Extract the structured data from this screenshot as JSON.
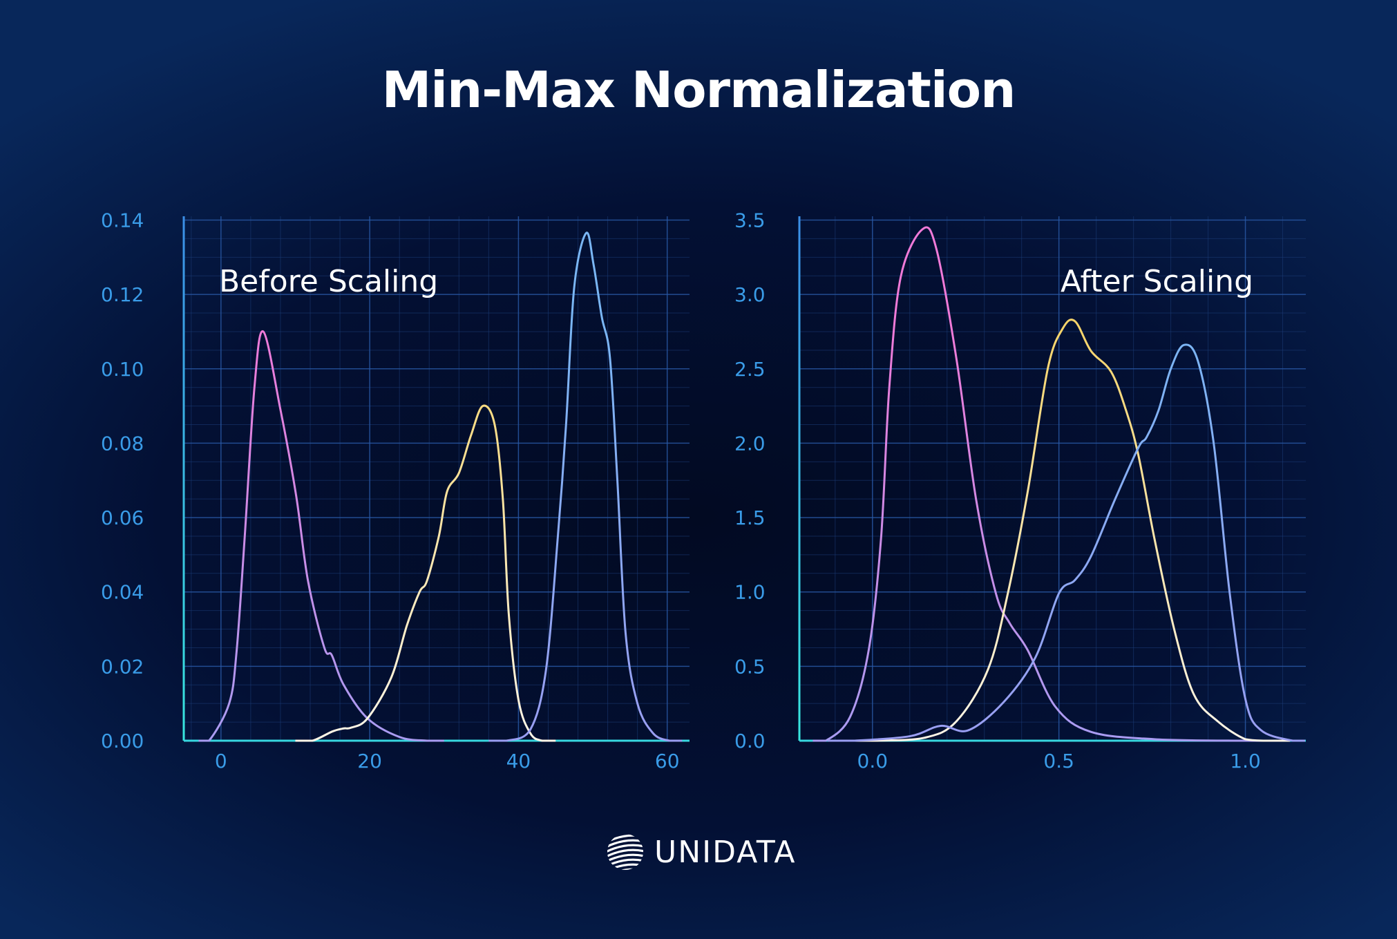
{
  "title": "Min-Max Normalization",
  "logo": {
    "text": "UNIDATA",
    "icon": "striped-globe-icon"
  },
  "colors": {
    "pink": "#f07ad8",
    "lavender": "#a99cf2",
    "yellow": "#f7d469",
    "white": "#fff6e8",
    "blue": "#7ab6f4",
    "periwinkle": "#9a9ef2",
    "axis_top": "#3b8ee6",
    "axis_bottom": "#38e6de",
    "tick": "#3a9ce8"
  },
  "chart_data": [
    {
      "type": "line",
      "label": "Before Scaling",
      "xlim": [
        -5,
        63
      ],
      "ylim": [
        0,
        0.14
      ],
      "xticks": [
        "0",
        "20",
        "40",
        "60"
      ],
      "xtick_values": [
        0,
        20,
        40,
        60
      ],
      "yticks": [
        "0.00",
        "0.02",
        "0.04",
        "0.06",
        "0.08",
        "0.10",
        "0.12",
        "0.14"
      ],
      "ytick_values": [
        0,
        0.02,
        0.04,
        0.06,
        0.08,
        0.1,
        0.12,
        0.14
      ],
      "grid": true,
      "series": [
        {
          "color_top": "#f07ad8",
          "color_bottom": "#a99cf2",
          "x": [
            -3,
            -1.6,
            1.1,
            2.1,
            3.2,
            4.5,
            5.7,
            8,
            10.1,
            11.7,
            13.9,
            14.9,
            16.5,
            19.7,
            24,
            27.7,
            30
          ],
          "y": [
            0,
            0,
            0.01,
            0.024,
            0.055,
            0.095,
            0.11,
            0.089,
            0.066,
            0.043,
            0.025,
            0.023,
            0.015,
            0.006,
            0.001,
            0,
            0
          ]
        },
        {
          "color_top": "#f7d469",
          "color_bottom": "#fff6e8",
          "x": [
            10,
            12.3,
            15,
            16.5,
            17.5,
            19.7,
            22.9,
            25,
            26.7,
            27.7,
            29.3,
            30.4,
            32,
            33.6,
            35.2,
            36.8,
            37.9,
            38.7,
            40,
            41.6,
            43.2,
            45
          ],
          "y": [
            0,
            0,
            0.0025,
            0.0033,
            0.0035,
            0.006,
            0.017,
            0.031,
            0.04,
            0.043,
            0.055,
            0.067,
            0.072,
            0.082,
            0.09,
            0.085,
            0.065,
            0.034,
            0.011,
            0.002,
            0,
            0
          ]
        },
        {
          "color_top": "#7ab6f4",
          "color_bottom": "#9a9ef2",
          "x": [
            36,
            38.4,
            41.6,
            43.7,
            45.3,
            46.4,
            47.5,
            49.1,
            50.1,
            51.2,
            52.3,
            53.3,
            54.4,
            56,
            58.1,
            60.3,
            62
          ],
          "y": [
            0,
            0,
            0.003,
            0.019,
            0.055,
            0.085,
            0.122,
            0.1365,
            0.128,
            0.114,
            0.103,
            0.07,
            0.029,
            0.01,
            0.002,
            0,
            0
          ]
        }
      ]
    },
    {
      "type": "line",
      "label": "After Scaling",
      "xlim": [
        -0.196,
        1.162
      ],
      "ylim": [
        0,
        3.5
      ],
      "xticks": [
        "0.0",
        "0.5",
        "1.0"
      ],
      "xtick_values": [
        0,
        0.5,
        1
      ],
      "yticks": [
        "0.0",
        "0.5",
        "1.0",
        "1.5",
        "2.0",
        "2.5",
        "3.0",
        "3.5"
      ],
      "ytick_values": [
        0,
        0.5,
        1,
        1.5,
        2,
        2.5,
        3,
        3.5
      ],
      "grid": true,
      "series": [
        {
          "color_top": "#f07ad8",
          "color_bottom": "#a99cf2",
          "x": [
            -0.16,
            -0.125,
            -0.06,
            -0.01,
            0.023,
            0.045,
            0.076,
            0.135,
            0.172,
            0.225,
            0.278,
            0.331,
            0.368,
            0.416,
            0.49,
            0.585,
            0.756,
            0.97,
            1.1
          ],
          "y": [
            0,
            0,
            0.16,
            0.61,
            1.36,
            2.37,
            3.12,
            3.44,
            3.3,
            2.57,
            1.62,
            0.99,
            0.79,
            0.61,
            0.23,
            0.06,
            0.01,
            0,
            0
          ]
        },
        {
          "color_top": "#f7d469",
          "color_bottom": "#fff6e8",
          "x": [
            -0.1,
            0.013,
            0.14,
            0.225,
            0.31,
            0.363,
            0.416,
            0.47,
            0.51,
            0.543,
            0.586,
            0.64,
            0.68,
            0.713,
            0.756,
            0.81,
            0.862,
            0.926,
            1.0,
            1.053,
            1.12
          ],
          "y": [
            0,
            0,
            0.02,
            0.13,
            0.48,
            0.99,
            1.67,
            2.5,
            2.77,
            2.82,
            2.62,
            2.48,
            2.22,
            1.92,
            1.36,
            0.74,
            0.31,
            0.13,
            0.01,
            0,
            0
          ]
        },
        {
          "color_top": "#7ab6f4",
          "color_bottom": "#9a9ef2",
          "x": [
            -0.12,
            -0.05,
            0.1,
            0.183,
            0.257,
            0.352,
            0.437,
            0.5,
            0.543,
            0.586,
            0.65,
            0.713,
            0.735,
            0.767,
            0.8,
            0.835,
            0.873,
            0.915,
            0.958,
            1.0,
            1.042,
            1.127,
            1.16
          ],
          "y": [
            0,
            0,
            0.03,
            0.1,
            0.07,
            0.26,
            0.56,
            0.99,
            1.08,
            1.24,
            1.62,
            1.97,
            2.04,
            2.22,
            2.5,
            2.66,
            2.55,
            2.0,
            0.99,
            0.28,
            0.07,
            0,
            0
          ]
        }
      ]
    }
  ]
}
